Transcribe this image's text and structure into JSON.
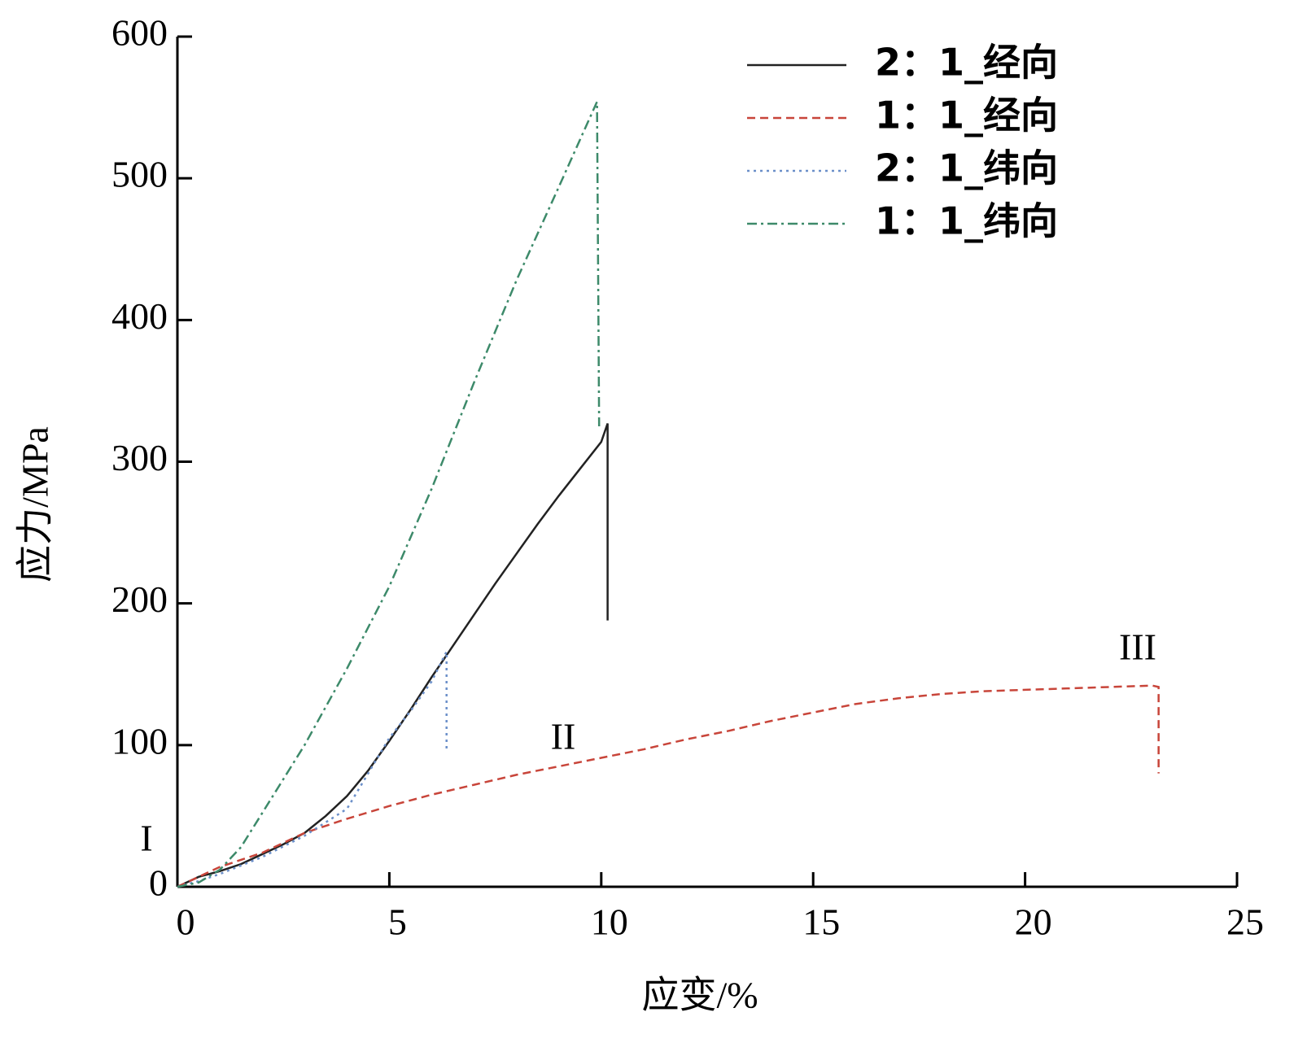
{
  "chart_data": {
    "type": "line",
    "x_label": "应变/%",
    "y_label": "应力/MPa",
    "xlim": [
      0,
      25
    ],
    "xticks": [
      0,
      5,
      10,
      15,
      20,
      25
    ],
    "ylim": [
      0,
      600
    ],
    "yticks": [
      0,
      100,
      200,
      300,
      400,
      500,
      600
    ],
    "legend": "upper right",
    "annotations": [
      "I",
      "II",
      "III"
    ],
    "series": [
      {
        "name": "2：1_经向",
        "color": "#222222",
        "dash": "solid",
        "x": [
          0,
          0.5,
          1,
          1.5,
          2,
          2.5,
          3,
          3.5,
          4,
          4.5,
          5,
          5.5,
          6,
          6.5,
          7,
          7.5,
          8,
          8.5,
          9,
          9.5,
          10,
          10.15,
          10.15
        ],
        "values": [
          0,
          7,
          11,
          16,
          23,
          30,
          38,
          50,
          64,
          82,
          103,
          125,
          148,
          170,
          192,
          214,
          235,
          256,
          276,
          295,
          314,
          327,
          188
        ]
      },
      {
        "name": "1：1_经向",
        "color": "#c8453a",
        "dash": "dashed",
        "x": [
          0,
          0.5,
          1,
          2,
          3,
          4,
          5,
          6,
          7,
          8,
          9,
          10,
          11,
          12,
          13,
          14,
          15,
          16,
          17,
          18,
          19,
          20,
          21,
          22,
          23,
          23.15,
          23.15
        ],
        "values": [
          0,
          7,
          14,
          24,
          38,
          48,
          57,
          65,
          72,
          79,
          85,
          91,
          97,
          104,
          110,
          117,
          123,
          129,
          133,
          136,
          138,
          139,
          140,
          141,
          142,
          141,
          80
        ]
      },
      {
        "name": "2：1_纬向",
        "color": "#6b8fc9",
        "dash": "dotted",
        "x": [
          0,
          0.5,
          1,
          2,
          3,
          4,
          5,
          5.5,
          6,
          6.35,
          6.35
        ],
        "values": [
          0,
          4,
          9,
          21,
          36,
          55,
          105,
          124,
          145,
          166,
          95
        ]
      },
      {
        "name": "1：1_纬向",
        "color": "#3d8a6a",
        "dash": "dashdot",
        "x": [
          0,
          0.5,
          1,
          1.5,
          2,
          3,
          4,
          5,
          6,
          7,
          8,
          9,
          9.9,
          9.95
        ],
        "values": [
          0,
          3,
          12,
          28,
          52,
          100,
          154,
          212,
          281,
          356,
          428,
          494,
          554,
          325
        ]
      }
    ]
  }
}
